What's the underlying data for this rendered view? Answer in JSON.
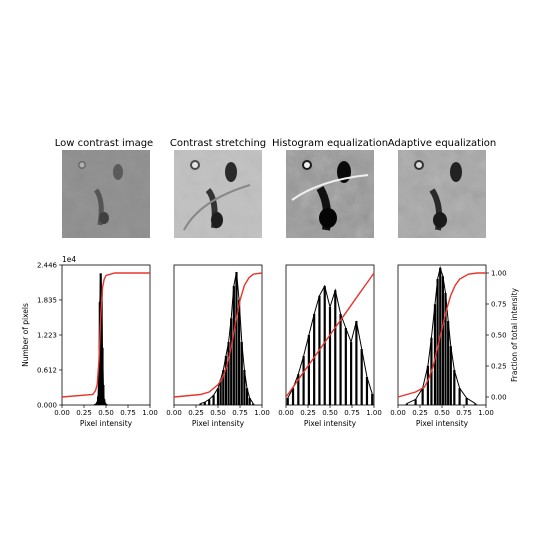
{
  "titles": [
    "Low contrast image",
    "Contrast stretching",
    "Histogram equalization",
    "Adaptive equalization"
  ],
  "icons": [
    "moon-surface-image-low-contrast",
    "moon-surface-image-contrast-stretched",
    "moon-surface-image-histogram-equalized",
    "moon-surface-image-adaptive-equalized"
  ],
  "colors": {
    "histogram": "#000000",
    "cdf": "#e8352b",
    "frame": "#000000"
  },
  "chart_data": [
    {
      "type": "bar",
      "title": "Low contrast image",
      "xlabel": "Pixel intensity",
      "ylabel": "Number of pixels",
      "y_offset_label": "1e4",
      "xlim": [
        0,
        1
      ],
      "ylim": [
        0,
        2.446
      ],
      "xticks": [
        "0.00",
        "0.25",
        "0.50",
        "0.75",
        "1.00"
      ],
      "yticks": [
        "0.000",
        "0.612",
        "1.223",
        "1.835",
        "2.446"
      ],
      "histogram": {
        "x": [
          0.36,
          0.38,
          0.4,
          0.41,
          0.42,
          0.43,
          0.44,
          0.45,
          0.46,
          0.47,
          0.48,
          0.49,
          0.5,
          0.52
        ],
        "y": [
          0.0,
          0.01,
          0.05,
          0.15,
          0.6,
          1.8,
          2.3,
          2.0,
          1.0,
          0.35,
          0.1,
          0.04,
          0.01,
          0.0
        ]
      },
      "cdf": {
        "x": [
          0.0,
          0.35,
          0.38,
          0.4,
          0.42,
          0.44,
          0.46,
          0.48,
          0.5,
          0.55,
          0.6,
          1.0
        ],
        "y": [
          0.0,
          0.02,
          0.05,
          0.1,
          0.3,
          0.65,
          0.88,
          0.95,
          0.98,
          0.99,
          1.0,
          1.0
        ]
      }
    },
    {
      "type": "bar",
      "title": "Contrast stretching",
      "xlabel": "Pixel intensity",
      "xlim": [
        0,
        1
      ],
      "xticks": [
        "0.00",
        "0.25",
        "0.50",
        "0.75",
        "1.00"
      ],
      "histogram": {
        "x": [
          0.3,
          0.35,
          0.4,
          0.45,
          0.5,
          0.53,
          0.56,
          0.59,
          0.62,
          0.65,
          0.68,
          0.71,
          0.74,
          0.77,
          0.8,
          0.83,
          0.86,
          0.9
        ],
        "y": [
          0.01,
          0.02,
          0.04,
          0.07,
          0.12,
          0.18,
          0.25,
          0.35,
          0.45,
          0.62,
          0.85,
          0.95,
          0.75,
          0.45,
          0.25,
          0.12,
          0.05,
          0.01
        ]
      },
      "cdf": {
        "x": [
          0.0,
          0.3,
          0.4,
          0.5,
          0.55,
          0.6,
          0.65,
          0.7,
          0.75,
          0.8,
          0.85,
          0.9,
          1.0
        ],
        "y": [
          0.0,
          0.02,
          0.04,
          0.1,
          0.15,
          0.25,
          0.4,
          0.6,
          0.78,
          0.9,
          0.96,
          0.99,
          1.0
        ]
      }
    },
    {
      "type": "bar",
      "title": "Histogram equalization",
      "xlabel": "Pixel intensity",
      "xlim": [
        0,
        1
      ],
      "xticks": [
        "0.00",
        "0.25",
        "0.50",
        "0.75",
        "1.00"
      ],
      "histogram": {
        "x": [
          0.02,
          0.08,
          0.14,
          0.2,
          0.26,
          0.32,
          0.38,
          0.44,
          0.5,
          0.56,
          0.62,
          0.68,
          0.74,
          0.8,
          0.86,
          0.92,
          0.98
        ],
        "y": [
          0.05,
          0.12,
          0.22,
          0.35,
          0.5,
          0.65,
          0.78,
          0.85,
          0.7,
          0.82,
          0.65,
          0.55,
          0.45,
          0.6,
          0.4,
          0.2,
          0.08
        ]
      },
      "cdf": {
        "x": [
          0.0,
          0.06,
          0.12,
          0.18,
          0.24,
          0.3,
          0.36,
          0.42,
          0.48,
          0.54,
          0.6,
          0.66,
          0.72,
          0.78,
          0.84,
          0.9,
          0.96,
          1.0
        ],
        "y": [
          0.0,
          0.06,
          0.12,
          0.18,
          0.24,
          0.3,
          0.36,
          0.42,
          0.48,
          0.54,
          0.6,
          0.66,
          0.72,
          0.78,
          0.84,
          0.9,
          0.96,
          1.0
        ]
      }
    },
    {
      "type": "bar",
      "title": "Adaptive equalization",
      "xlabel": "Pixel intensity",
      "ylabel_right": "Fraction of total intensity",
      "xlim": [
        0,
        1
      ],
      "y2lim": [
        0,
        1
      ],
      "xticks": [
        "0.00",
        "0.25",
        "0.50",
        "0.75",
        "1.00"
      ],
      "y2ticks": [
        "0.00",
        "0.25",
        "0.50",
        "0.75",
        "1.00"
      ],
      "histogram": {
        "x": [
          0.1,
          0.2,
          0.28,
          0.34,
          0.38,
          0.42,
          0.45,
          0.48,
          0.51,
          0.54,
          0.57,
          0.6,
          0.64,
          0.7,
          0.78,
          0.88
        ],
        "y": [
          0.01,
          0.04,
          0.12,
          0.28,
          0.48,
          0.72,
          0.9,
          0.98,
          0.92,
          0.8,
          0.6,
          0.42,
          0.25,
          0.12,
          0.05,
          0.01
        ]
      },
      "cdf": {
        "x": [
          0.0,
          0.2,
          0.3,
          0.35,
          0.4,
          0.45,
          0.5,
          0.55,
          0.6,
          0.65,
          0.7,
          0.8,
          0.9,
          1.0
        ],
        "y": [
          0.0,
          0.04,
          0.08,
          0.15,
          0.25,
          0.4,
          0.55,
          0.7,
          0.82,
          0.9,
          0.95,
          0.99,
          1.0,
          1.0
        ]
      }
    }
  ]
}
